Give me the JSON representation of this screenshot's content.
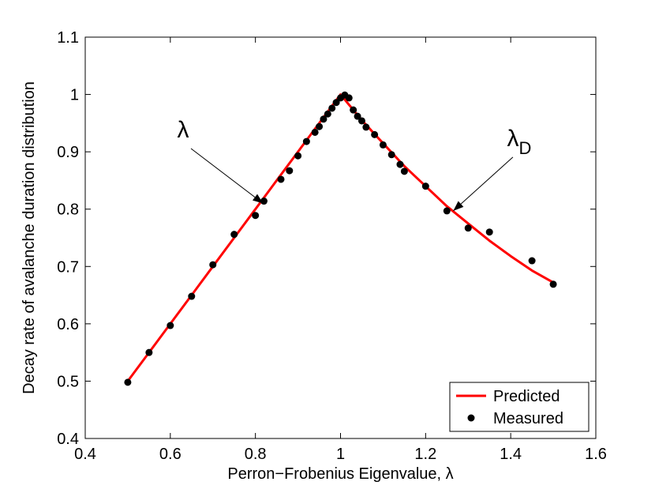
{
  "chart_data": {
    "type": "line",
    "xlabel": "Perron−Frobenius Eigenvalue, λ",
    "ylabel": "Decay rate of avalanche duration distribution",
    "xlim": [
      0.4,
      1.6
    ],
    "ylim": [
      0.4,
      1.1
    ],
    "xticks": [
      "0.4",
      "0.6",
      "0.8",
      "1",
      "1.2",
      "1.4",
      "1.6"
    ],
    "yticks": [
      "0.4",
      "0.5",
      "0.6",
      "0.7",
      "0.8",
      "0.9",
      "1",
      "1.1"
    ],
    "grid": false,
    "legend_position": "bottom-right",
    "series": [
      {
        "name": "Predicted",
        "style": "line",
        "color": "#ff0000",
        "x": [
          0.5,
          0.55,
          0.6,
          0.65,
          0.7,
          0.75,
          0.8,
          0.85,
          0.9,
          0.95,
          1.0,
          1.05,
          1.1,
          1.15,
          1.2,
          1.25,
          1.3,
          1.35,
          1.4,
          1.45,
          1.5
        ],
        "y": [
          0.5,
          0.55,
          0.6,
          0.65,
          0.7,
          0.75,
          0.8,
          0.85,
          0.9,
          0.95,
          1.0,
          0.955,
          0.915,
          0.875,
          0.84,
          0.805,
          0.775,
          0.745,
          0.718,
          0.693,
          0.672
        ]
      },
      {
        "name": "Measured",
        "style": "markers",
        "color": "#000000",
        "x": [
          0.5,
          0.55,
          0.6,
          0.65,
          0.7,
          0.75,
          0.8,
          0.82,
          0.86,
          0.88,
          0.9,
          0.92,
          0.94,
          0.95,
          0.96,
          0.97,
          0.98,
          0.99,
          1.0,
          1.01,
          1.02,
          1.03,
          1.04,
          1.05,
          1.06,
          1.08,
          1.1,
          1.12,
          1.14,
          1.15,
          1.2,
          1.25,
          1.3,
          1.35,
          1.45,
          1.5
        ],
        "y": [
          0.498,
          0.55,
          0.597,
          0.648,
          0.703,
          0.756,
          0.789,
          0.814,
          0.852,
          0.867,
          0.893,
          0.918,
          0.934,
          0.944,
          0.957,
          0.966,
          0.976,
          0.986,
          0.994,
          0.999,
          0.994,
          0.973,
          0.962,
          0.954,
          0.943,
          0.93,
          0.912,
          0.895,
          0.878,
          0.866,
          0.84,
          0.797,
          0.767,
          0.76,
          0.71,
          0.669
        ]
      }
    ],
    "annotations": [
      {
        "text": "λ",
        "subscript": "",
        "x": 0.63,
        "y": 0.925,
        "arrow_to": [
          0.818,
          0.81
        ]
      },
      {
        "text": "λ",
        "subscript": "D",
        "x": 1.42,
        "y": 0.91,
        "arrow_to": [
          1.265,
          0.797
        ]
      }
    ]
  }
}
